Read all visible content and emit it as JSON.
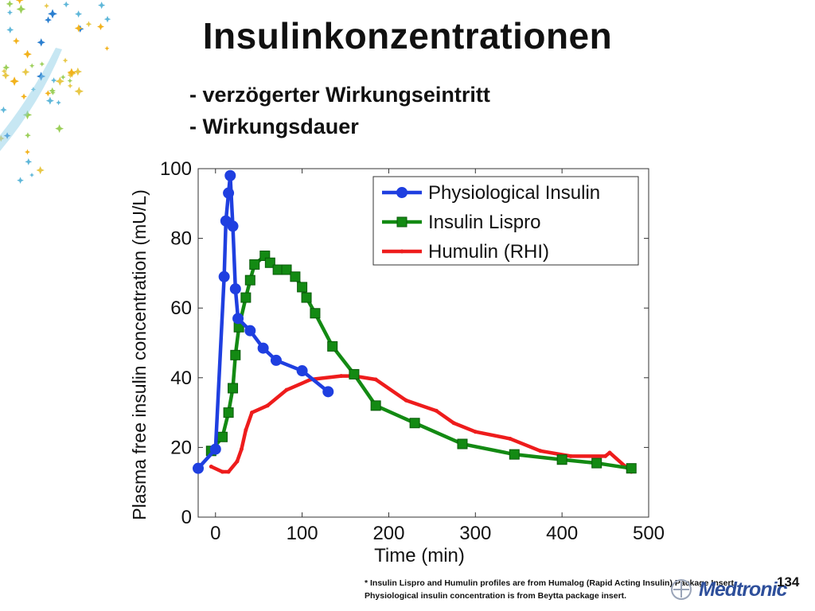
{
  "slide": {
    "title": "Insulinkonzentrationen",
    "bullets": [
      "- verzögerter Wirkungseintritt",
      "- Wirkungsdauer"
    ],
    "footnote": "* Insulin Lispro and Humulin profiles are from Humalog (Rapid Acting Insulin) Package Insert. Physiological insulin concentration is from Beytta package insert.",
    "page_number": "134",
    "logo": "Medtronic"
  },
  "chart_data": {
    "type": "line",
    "title": "",
    "xlabel": "Time (min)",
    "ylabel": "Plasma free insulin concentration (mU/L)",
    "xlim": [
      -20,
      500
    ],
    "ylim": [
      0,
      100
    ],
    "xticks": [
      0,
      100,
      200,
      300,
      400,
      500
    ],
    "yticks": [
      0,
      20,
      40,
      60,
      80,
      100
    ],
    "grid": false,
    "legend_position": "top-right",
    "series": [
      {
        "name": "Physiological Insulin",
        "color": "#1f3fe0",
        "marker": "circle",
        "points": [
          [
            -20,
            14
          ],
          [
            0,
            19.5
          ],
          [
            10,
            69
          ],
          [
            12,
            85
          ],
          [
            15,
            93
          ],
          [
            17,
            98
          ],
          [
            20,
            83.5
          ],
          [
            23,
            65.5
          ],
          [
            26,
            57
          ],
          [
            40,
            53.5
          ],
          [
            55,
            48.5
          ],
          [
            70,
            45
          ],
          [
            100,
            42
          ],
          [
            130,
            36
          ]
        ]
      },
      {
        "name": "Insulin Lispro",
        "color": "#138a13",
        "marker": "square",
        "points": [
          [
            -5,
            19
          ],
          [
            8,
            23
          ],
          [
            15,
            30
          ],
          [
            20,
            37
          ],
          [
            23,
            46.5
          ],
          [
            27,
            54.5
          ],
          [
            35,
            63
          ],
          [
            40,
            68
          ],
          [
            45,
            72.5
          ],
          [
            57,
            75
          ],
          [
            63,
            73
          ],
          [
            72,
            71
          ],
          [
            82,
            71
          ],
          [
            92,
            69
          ],
          [
            100,
            66
          ],
          [
            105,
            63
          ],
          [
            115,
            58.5
          ],
          [
            135,
            49
          ],
          [
            160,
            41
          ],
          [
            185,
            32
          ],
          [
            230,
            27
          ],
          [
            285,
            21
          ],
          [
            345,
            18
          ],
          [
            400,
            16.5
          ],
          [
            440,
            15.5
          ],
          [
            480,
            14
          ]
        ]
      },
      {
        "name": "Humulin (RHI)",
        "color": "#ee1c1c",
        "marker": "small-star",
        "points": [
          [
            -5,
            14.5
          ],
          [
            8,
            13
          ],
          [
            15,
            13
          ],
          [
            25,
            16
          ],
          [
            30,
            19.5
          ],
          [
            35,
            25
          ],
          [
            42,
            30
          ],
          [
            60,
            32
          ],
          [
            82,
            36.5
          ],
          [
            110,
            39.5
          ],
          [
            145,
            40.5
          ],
          [
            160,
            40.5
          ],
          [
            185,
            39.5
          ],
          [
            220,
            33.5
          ],
          [
            255,
            30.5
          ],
          [
            275,
            27
          ],
          [
            300,
            24.5
          ],
          [
            340,
            22.5
          ],
          [
            375,
            19
          ],
          [
            410,
            17.5
          ],
          [
            450,
            17.5
          ],
          [
            455,
            18.5
          ],
          [
            480,
            13
          ]
        ]
      }
    ]
  }
}
